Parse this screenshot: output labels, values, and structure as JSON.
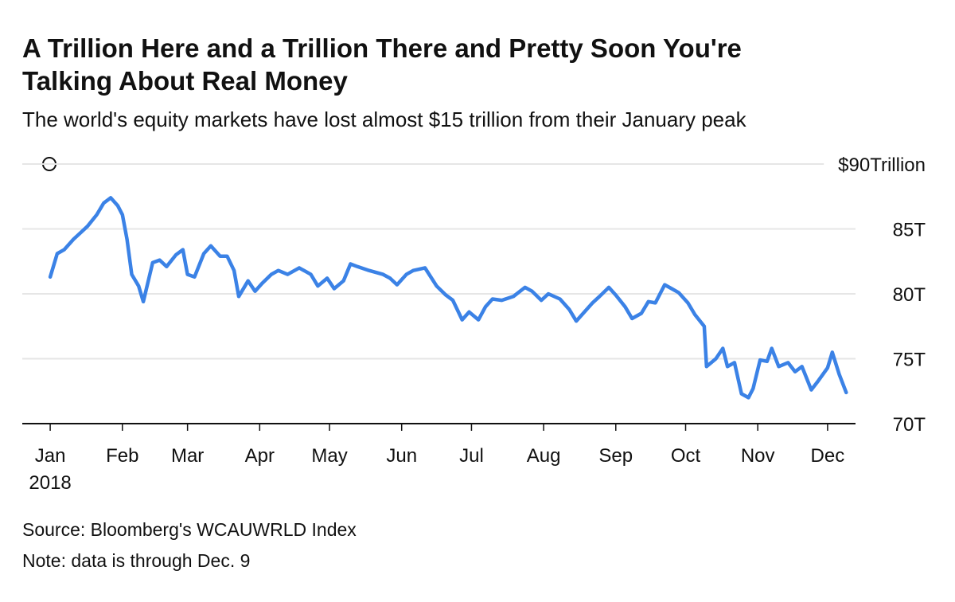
{
  "chart_data": {
    "type": "line",
    "title": [
      "A Trillion Here and a Trillion There and Pretty Soon You're",
      "Talking About Real Money"
    ],
    "subtitle": "The world's equity markets have lost almost $15 trillion from their January peak",
    "source": "Source: Bloomberg's WCAUWRLD Index",
    "note": "Note: data is through Dec. 9",
    "x_year_label": "2018",
    "x": [
      1,
      4,
      7,
      11,
      14,
      17,
      21,
      24,
      27,
      30,
      32,
      34,
      36,
      39,
      41,
      45,
      48,
      51,
      55,
      58,
      60,
      63,
      67,
      70,
      74,
      77,
      80,
      82,
      86,
      89,
      92,
      96,
      99,
      103,
      108,
      113,
      116,
      120,
      123,
      127,
      130,
      133,
      138,
      144,
      147,
      150,
      154,
      157,
      162,
      167,
      171,
      174,
      178,
      181,
      185,
      188,
      191,
      195,
      200,
      205,
      208,
      212,
      215,
      220,
      224,
      227,
      231,
      234,
      237,
      241,
      244,
      248,
      251,
      255,
      258,
      261,
      265,
      268,
      271,
      275,
      278,
      282,
      283,
      287,
      290,
      292,
      295,
      298,
      301,
      303,
      306,
      309,
      311,
      314,
      318,
      321,
      324,
      328,
      331,
      335,
      337,
      340,
      343
    ],
    "series": [
      {
        "name": "WCAUWRLD Index",
        "color": "#3b82e6",
        "values": [
          81.3,
          83.1,
          83.4,
          84.2,
          84.7,
          85.2,
          86.1,
          87.0,
          87.4,
          86.8,
          86.1,
          84.2,
          81.5,
          80.6,
          79.4,
          82.4,
          82.6,
          82.1,
          83.0,
          83.4,
          81.5,
          81.3,
          83.1,
          83.7,
          82.9,
          82.9,
          81.8,
          79.8,
          81.0,
          80.2,
          80.8,
          81.5,
          81.8,
          81.5,
          82.0,
          81.5,
          80.6,
          81.2,
          80.4,
          81.0,
          82.3,
          82.1,
          81.8,
          81.5,
          81.2,
          80.7,
          81.5,
          81.8,
          82.0,
          80.6,
          79.9,
          79.5,
          78.0,
          78.6,
          78.0,
          79.0,
          79.6,
          79.5,
          79.8,
          80.5,
          80.2,
          79.5,
          80.0,
          79.6,
          78.8,
          77.9,
          78.7,
          79.3,
          79.8,
          80.5,
          79.9,
          79.0,
          78.1,
          78.5,
          79.4,
          79.3,
          80.7,
          80.4,
          80.1,
          79.3,
          78.4,
          77.5,
          74.4,
          75.0,
          75.8,
          74.4,
          74.7,
          72.3,
          72.0,
          72.7,
          74.9,
          74.8,
          75.8,
          74.4,
          74.7,
          74.0,
          74.4,
          72.6,
          73.3,
          74.3,
          75.5,
          73.8,
          72.4
        ]
      }
    ],
    "xlim": [
      -11,
      347
    ],
    "xticks": [
      {
        "value": 1,
        "label": "Jan"
      },
      {
        "value": 32,
        "label": "Feb"
      },
      {
        "value": 60,
        "label": "Mar"
      },
      {
        "value": 91,
        "label": "Apr"
      },
      {
        "value": 121,
        "label": "May"
      },
      {
        "value": 152,
        "label": "Jun"
      },
      {
        "value": 182,
        "label": "Jul"
      },
      {
        "value": 213,
        "label": "Aug"
      },
      {
        "value": 244,
        "label": "Sep"
      },
      {
        "value": 274,
        "label": "Oct"
      },
      {
        "value": 305,
        "label": "Nov"
      },
      {
        "value": 335,
        "label": "Dec"
      }
    ],
    "ylim": [
      70,
      90
    ],
    "yticks": [
      {
        "value": 70,
        "label": "70T"
      },
      {
        "value": 75,
        "label": "75T"
      },
      {
        "value": 80,
        "label": "80T"
      },
      {
        "value": 85,
        "label": "85T"
      },
      {
        "value": 90,
        "label": "$90Trillion"
      }
    ],
    "grid": true
  }
}
